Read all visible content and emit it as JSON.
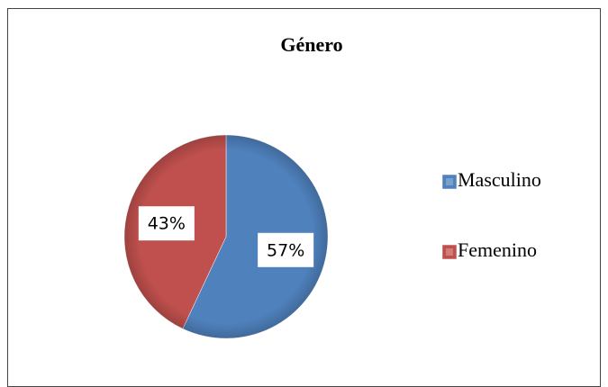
{
  "chart_data": {
    "type": "pie",
    "title": "Género",
    "categories": [
      "Masculino",
      "Femenino"
    ],
    "values": [
      57,
      43
    ],
    "value_labels": [
      "57%",
      "43%"
    ],
    "colors": [
      "#4f81bd",
      "#c0504d"
    ],
    "legend": "right"
  }
}
